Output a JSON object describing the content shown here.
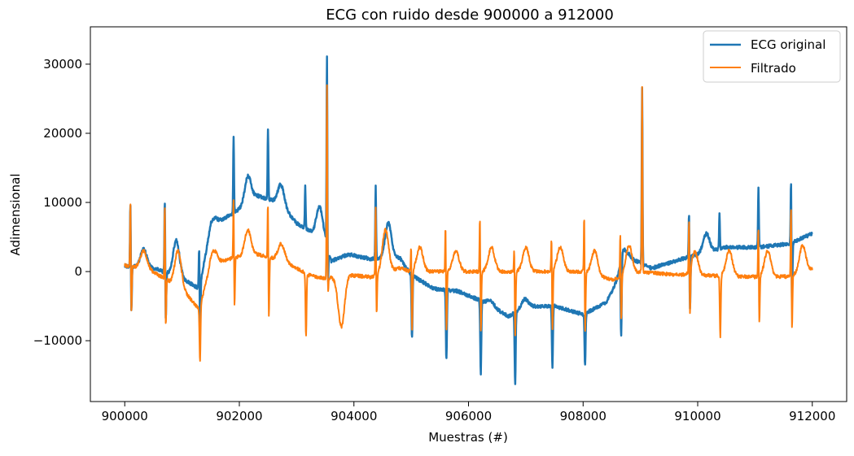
{
  "chart_data": {
    "type": "line",
    "title": "ECG con ruido desde 900000 a 912000",
    "xlabel": "Muestras (#)",
    "ylabel": "Adimensional",
    "xlim": [
      899400,
      912600
    ],
    "ylim": [
      -18800,
      35400
    ],
    "xticks": [
      900000,
      902000,
      904000,
      906000,
      908000,
      910000,
      912000
    ],
    "xtick_labels": [
      "900000",
      "902000",
      "904000",
      "906000",
      "908000",
      "910000",
      "912000"
    ],
    "yticks": [
      -10000,
      0,
      10000,
      20000,
      30000
    ],
    "ytick_labels": [
      "−10000",
      "0",
      "10000",
      "20000",
      "30000"
    ],
    "grid": false,
    "legend_position": "upper-right",
    "series": [
      {
        "name": "ECG original",
        "color": "#1f77b4",
        "baseline": [
          [
            900000,
            800
          ],
          [
            900500,
            500
          ],
          [
            901000,
            -1000
          ],
          [
            901300,
            -2500
          ],
          [
            901500,
            6500
          ],
          [
            901800,
            8000
          ],
          [
            902000,
            9000
          ],
          [
            902300,
            11000
          ],
          [
            902700,
            10000
          ],
          [
            903000,
            7000
          ],
          [
            903500,
            4500
          ],
          [
            903600,
            1500
          ],
          [
            903900,
            2500
          ],
          [
            904300,
            1800
          ],
          [
            904800,
            2000
          ],
          [
            905000,
            -500
          ],
          [
            905400,
            -2500
          ],
          [
            905800,
            -2800
          ],
          [
            906300,
            -4500
          ],
          [
            906700,
            -6500
          ],
          [
            907000,
            -5000
          ],
          [
            907500,
            -5000
          ],
          [
            908000,
            -6200
          ],
          [
            908400,
            -4500
          ],
          [
            908800,
            2000
          ],
          [
            909200,
            500
          ],
          [
            909600,
            1500
          ],
          [
            910000,
            2500
          ],
          [
            910500,
            3500
          ],
          [
            911000,
            3500
          ],
          [
            911600,
            4000
          ],
          [
            912000,
            5500
          ]
        ],
        "peaks": [
          [
            900100,
            11700,
            -6500
          ],
          [
            900700,
            12300,
            -8000
          ],
          [
            901300,
            5500,
            -10000
          ],
          [
            901900,
            19500,
            0
          ],
          [
            902500,
            20800,
            0
          ],
          [
            903150,
            12300,
            0
          ],
          [
            903530,
            32800,
            -3000
          ],
          [
            904380,
            12300,
            0
          ],
          [
            905000,
            0,
            -9700
          ],
          [
            905600,
            0,
            -12800
          ],
          [
            906200,
            0,
            -14800
          ],
          [
            906800,
            0,
            -16300
          ],
          [
            907450,
            0,
            -13800
          ],
          [
            908020,
            0,
            -13500
          ],
          [
            908650,
            0,
            -11500
          ],
          [
            909030,
            26400,
            0
          ],
          [
            909850,
            10500,
            -6500
          ],
          [
            910380,
            8300,
            0
          ],
          [
            911060,
            12000,
            0
          ],
          [
            911630,
            15800,
            -6000
          ]
        ],
        "bumps": [
          [
            900330,
            3200
          ],
          [
            900900,
            4500
          ],
          [
            901560,
            7700
          ],
          [
            902150,
            13800
          ],
          [
            902730,
            12500
          ],
          [
            903400,
            9400
          ],
          [
            904600,
            7000
          ],
          [
            906390,
            -4200
          ],
          [
            906980,
            -4000
          ],
          [
            908700,
            3000
          ],
          [
            910150,
            5500
          ]
        ]
      },
      {
        "name": "Filtrado",
        "color": "#ff7f0e",
        "baseline": [
          [
            900000,
            900
          ],
          [
            900400,
            400
          ],
          [
            901000,
            -2500
          ],
          [
            901300,
            -5500
          ],
          [
            901500,
            1000
          ],
          [
            901900,
            2000
          ],
          [
            902300,
            2500
          ],
          [
            902800,
            1500
          ],
          [
            903200,
            -500
          ],
          [
            903500,
            -1000
          ],
          [
            903900,
            -500
          ],
          [
            904300,
            -800
          ],
          [
            904800,
            500
          ],
          [
            905000,
            0
          ],
          [
            906000,
            0
          ],
          [
            907000,
            0
          ],
          [
            908000,
            0
          ],
          [
            908500,
            -1200
          ],
          [
            909000,
            0
          ],
          [
            909500,
            -400
          ],
          [
            910000,
            -500
          ],
          [
            910600,
            -700
          ],
          [
            911200,
            -800
          ],
          [
            911600,
            -700
          ],
          [
            912000,
            300
          ]
        ],
        "peaks": [
          [
            900100,
            11800,
            -7000
          ],
          [
            900700,
            11600,
            -8700
          ],
          [
            901300,
            0,
            -12800
          ],
          [
            901900,
            12600,
            -5800
          ],
          [
            902500,
            12300,
            -7500
          ],
          [
            903150,
            0,
            -9500
          ],
          [
            903530,
            27800,
            -4000
          ],
          [
            904380,
            11000,
            -7300
          ],
          [
            905000,
            5300,
            -9000
          ],
          [
            905600,
            8900,
            -9500
          ],
          [
            906200,
            10000,
            -9500
          ],
          [
            906800,
            5300,
            -10000
          ],
          [
            907450,
            7000,
            -9500
          ],
          [
            908020,
            10300,
            -9800
          ],
          [
            908650,
            7200,
            -8000
          ],
          [
            909030,
            26600,
            0
          ],
          [
            909850,
            8700,
            -8000
          ],
          [
            910380,
            0,
            -9400
          ],
          [
            911060,
            8300,
            -8500
          ],
          [
            911630,
            11500,
            -9300
          ]
        ],
        "bumps": [
          [
            900330,
            3000
          ],
          [
            900930,
            3000
          ],
          [
            901560,
            3000
          ],
          [
            902150,
            6000
          ],
          [
            902730,
            4000
          ],
          [
            903780,
            -8000
          ],
          [
            904550,
            6000
          ],
          [
            905150,
            3500
          ],
          [
            905780,
            3000
          ],
          [
            906400,
            3500
          ],
          [
            907000,
            3500
          ],
          [
            907600,
            3500
          ],
          [
            908200,
            3000
          ],
          [
            908800,
            3800
          ],
          [
            909950,
            2800
          ],
          [
            910550,
            3000
          ],
          [
            911220,
            3000
          ],
          [
            911830,
            3800
          ]
        ]
      }
    ]
  }
}
